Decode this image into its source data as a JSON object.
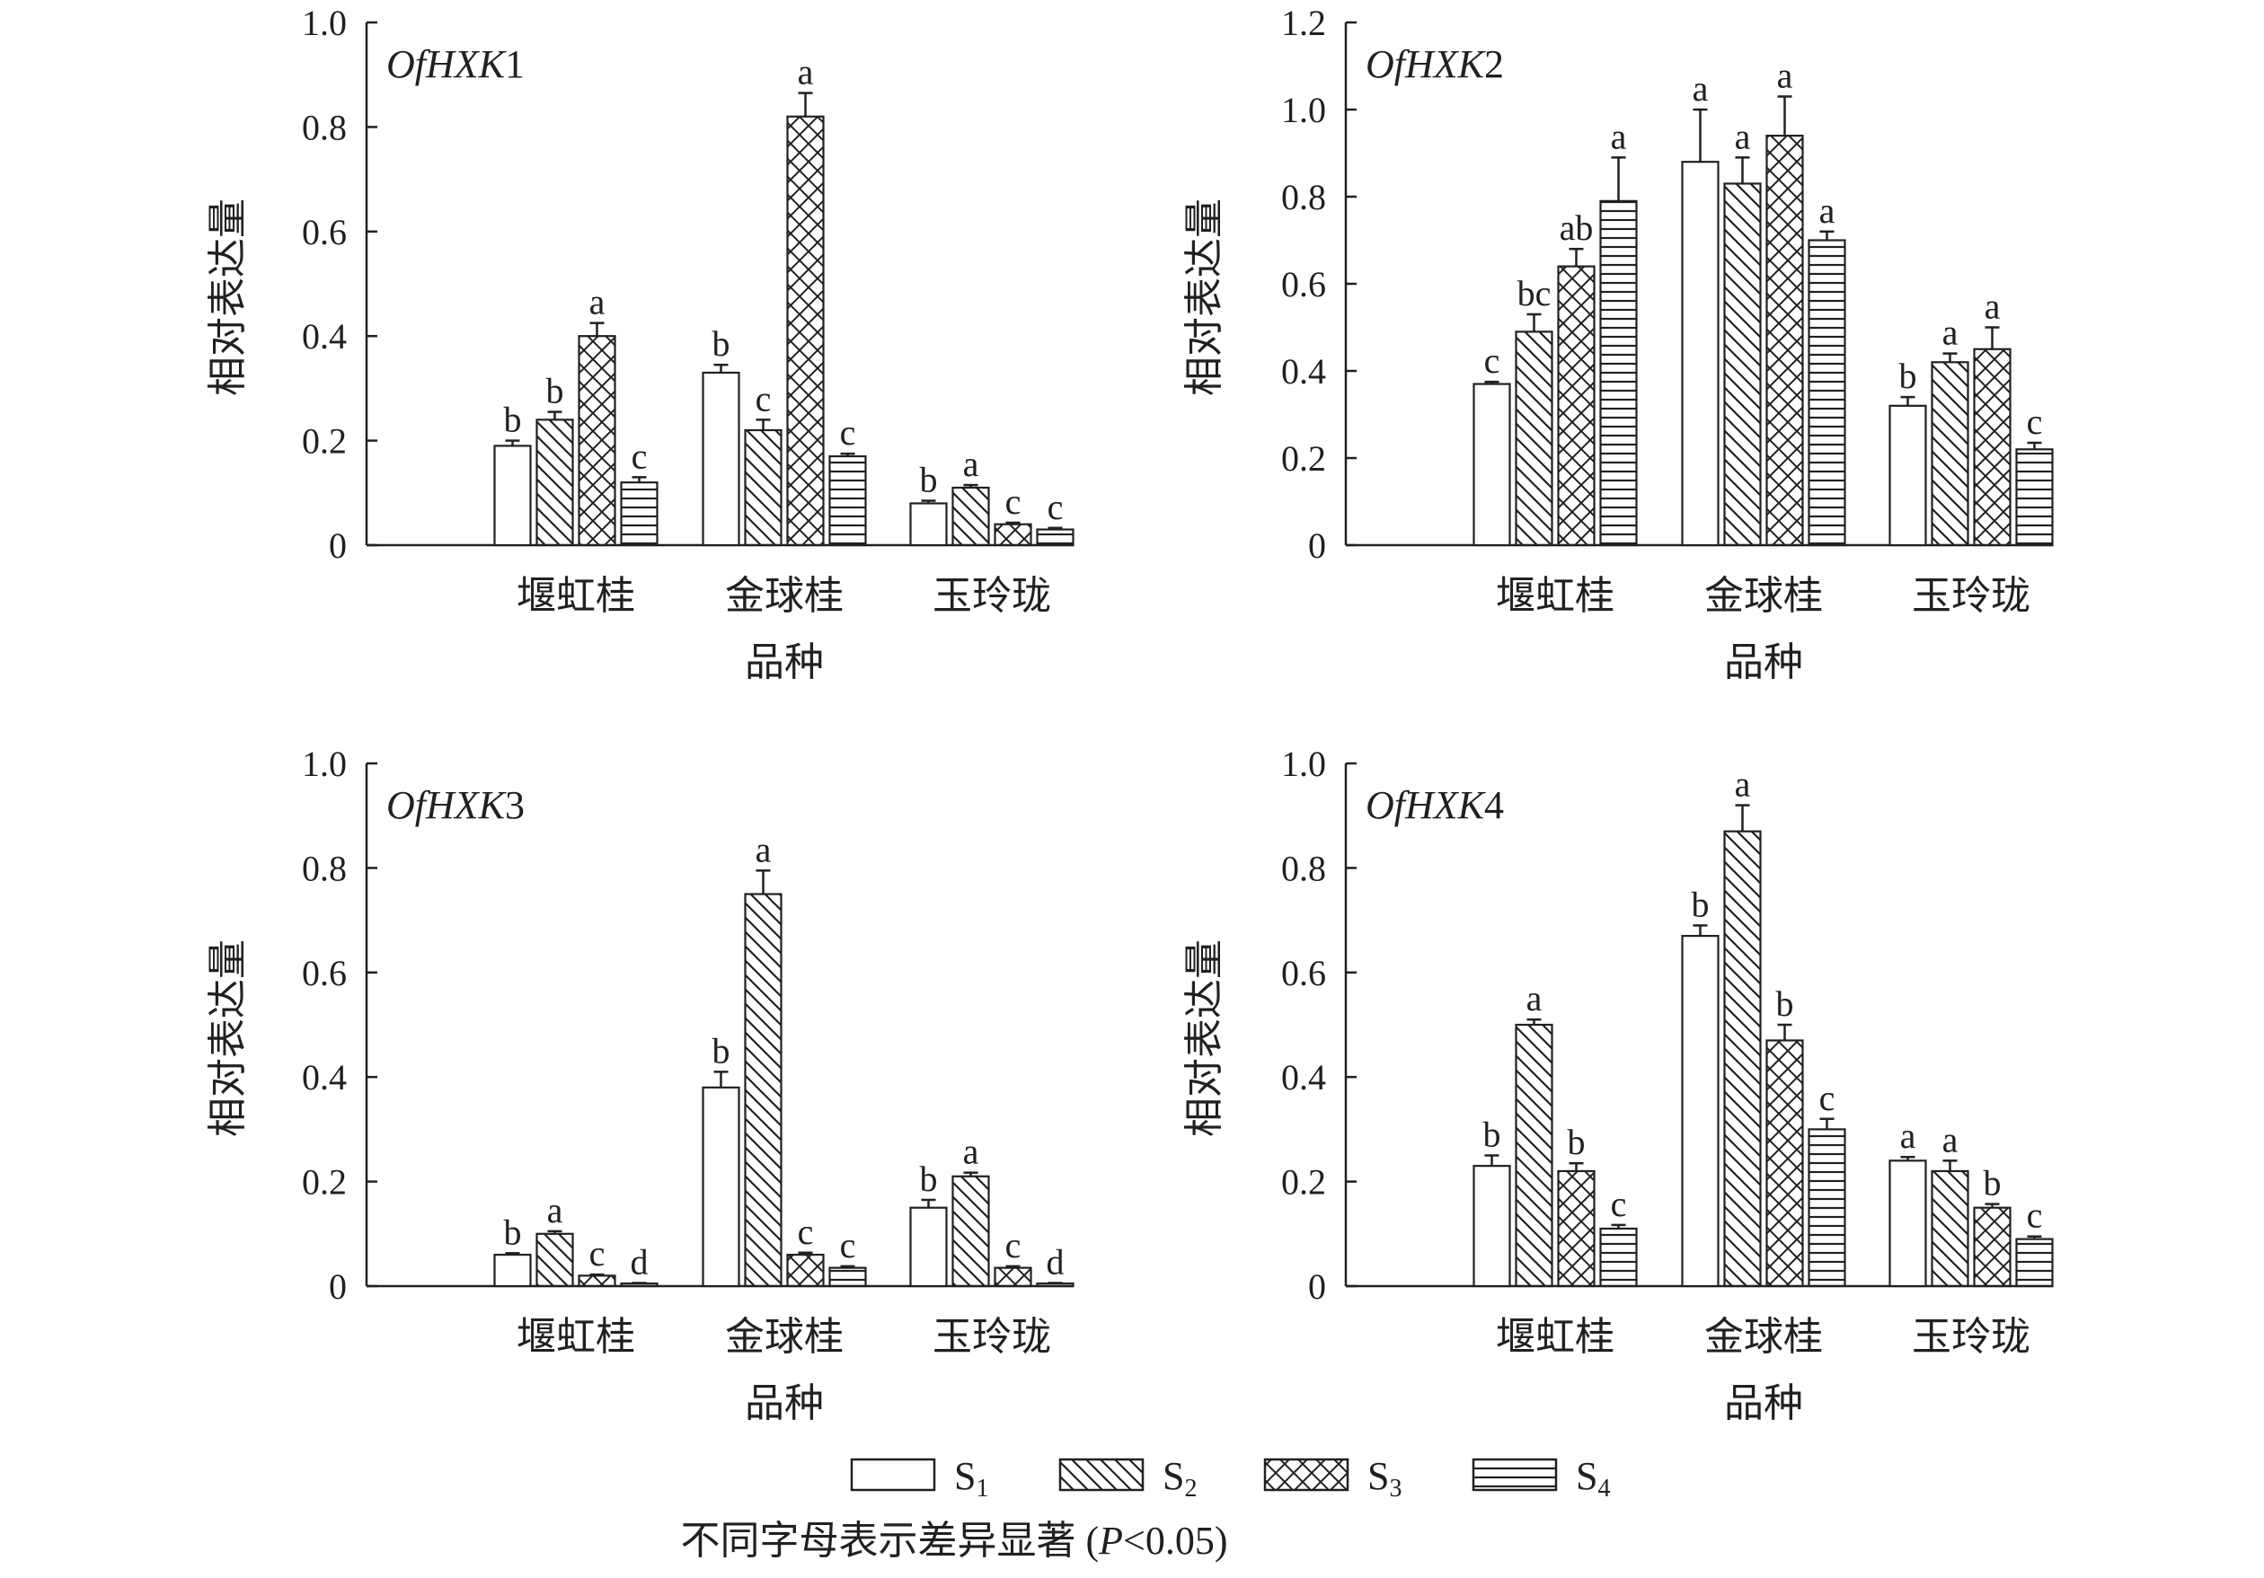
{
  "chart_data": [
    {
      "type": "bar",
      "gene": "OfHXK",
      "gene_num": "1",
      "categories": [
        "堰虹桂",
        "金球桂",
        "玉玲珑"
      ],
      "xlabel": "品种",
      "ylabel": "相对表达量",
      "ylim": [
        0,
        1.0
      ],
      "yticks": [
        "0",
        "0.2",
        "0.4",
        "0.6",
        "0.8",
        "1.0"
      ],
      "series": [
        {
          "name": "S1",
          "values": [
            0.19,
            0.33,
            0.08
          ],
          "errors": [
            0.01,
            0.015,
            0.005
          ],
          "letters": [
            "b",
            "b",
            "b"
          ]
        },
        {
          "name": "S2",
          "values": [
            0.24,
            0.22,
            0.11
          ],
          "errors": [
            0.015,
            0.02,
            0.005
          ],
          "letters": [
            "b",
            "c",
            "a"
          ]
        },
        {
          "name": "S3",
          "values": [
            0.4,
            0.82,
            0.04
          ],
          "errors": [
            0.025,
            0.045,
            0.003
          ],
          "letters": [
            "a",
            "a",
            "c"
          ]
        },
        {
          "name": "S4",
          "values": [
            0.12,
            0.17,
            0.03
          ],
          "errors": [
            0.01,
            0.005,
            0.003
          ],
          "letters": [
            "c",
            "c",
            "c"
          ]
        }
      ]
    },
    {
      "type": "bar",
      "gene": "OfHXK",
      "gene_num": "2",
      "categories": [
        "堰虹桂",
        "金球桂",
        "玉玲珑"
      ],
      "xlabel": "品种",
      "ylabel": "相对表达量",
      "ylim": [
        0,
        1.2
      ],
      "yticks": [
        "0",
        "0.2",
        "0.4",
        "0.6",
        "0.8",
        "1.0",
        "1.2"
      ],
      "series": [
        {
          "name": "S1",
          "values": [
            0.37,
            0.88,
            0.32
          ],
          "errors": [
            0.005,
            0.12,
            0.02
          ],
          "letters": [
            "c",
            "a",
            "b"
          ]
        },
        {
          "name": "S2",
          "values": [
            0.49,
            0.83,
            0.42
          ],
          "errors": [
            0.04,
            0.06,
            0.02
          ],
          "letters": [
            "bc",
            "a",
            "a"
          ]
        },
        {
          "name": "S3",
          "values": [
            0.64,
            0.94,
            0.45
          ],
          "errors": [
            0.04,
            0.09,
            0.05
          ],
          "letters": [
            "ab",
            "a",
            "a"
          ]
        },
        {
          "name": "S4",
          "values": [
            0.79,
            0.7,
            0.22
          ],
          "errors": [
            0.1,
            0.02,
            0.015
          ],
          "letters": [
            "a",
            "a",
            "c"
          ]
        }
      ]
    },
    {
      "type": "bar",
      "gene": "OfHXK",
      "gene_num": "3",
      "categories": [
        "堰虹桂",
        "金球桂",
        "玉玲珑"
      ],
      "xlabel": "品种",
      "ylabel": "相对表达量",
      "ylim": [
        0,
        1.0
      ],
      "yticks": [
        "0",
        "0.2",
        "0.4",
        "0.6",
        "0.8",
        "1.0"
      ],
      "series": [
        {
          "name": "S1",
          "values": [
            0.06,
            0.38,
            0.15
          ],
          "errors": [
            0.003,
            0.03,
            0.015
          ],
          "letters": [
            "b",
            "b",
            "b"
          ]
        },
        {
          "name": "S2",
          "values": [
            0.1,
            0.75,
            0.21
          ],
          "errors": [
            0.005,
            0.045,
            0.007
          ],
          "letters": [
            "a",
            "a",
            "a"
          ]
        },
        {
          "name": "S3",
          "values": [
            0.02,
            0.06,
            0.035
          ],
          "errors": [
            0.002,
            0.004,
            0.003
          ],
          "letters": [
            "c",
            "c",
            "c"
          ]
        },
        {
          "name": "S4",
          "values": [
            0.005,
            0.035,
            0.005
          ],
          "errors": [
            0.001,
            0.003,
            0.001
          ],
          "letters": [
            "d",
            "c",
            "d"
          ]
        }
      ]
    },
    {
      "type": "bar",
      "gene": "OfHXK",
      "gene_num": "4",
      "categories": [
        "堰虹桂",
        "金球桂",
        "玉玲珑"
      ],
      "xlabel": "品种",
      "ylabel": "相对表达量",
      "ylim": [
        0,
        1.0
      ],
      "yticks": [
        "0",
        "0.2",
        "0.4",
        "0.6",
        "0.8",
        "1.0"
      ],
      "series": [
        {
          "name": "S1",
          "values": [
            0.23,
            0.67,
            0.24
          ],
          "errors": [
            0.02,
            0.02,
            0.007
          ],
          "letters": [
            "b",
            "b",
            "a"
          ]
        },
        {
          "name": "S2",
          "values": [
            0.5,
            0.87,
            0.22
          ],
          "errors": [
            0.01,
            0.05,
            0.02
          ],
          "letters": [
            "a",
            "a",
            "a"
          ]
        },
        {
          "name": "S3",
          "values": [
            0.22,
            0.47,
            0.15
          ],
          "errors": [
            0.015,
            0.03,
            0.007
          ],
          "letters": [
            "b",
            "b",
            "b"
          ]
        },
        {
          "name": "S4",
          "values": [
            0.11,
            0.3,
            0.09
          ],
          "errors": [
            0.007,
            0.02,
            0.005
          ],
          "letters": [
            "c",
            "c",
            "c"
          ]
        }
      ]
    }
  ],
  "legend": [
    {
      "name": "S",
      "sub": "1"
    },
    {
      "name": "S",
      "sub": "2"
    },
    {
      "name": "S",
      "sub": "3"
    },
    {
      "name": "S",
      "sub": "4"
    }
  ],
  "footnote": {
    "text": "不同字母表示差异显著 (",
    "p": "P",
    "rest": "<0.05)"
  }
}
